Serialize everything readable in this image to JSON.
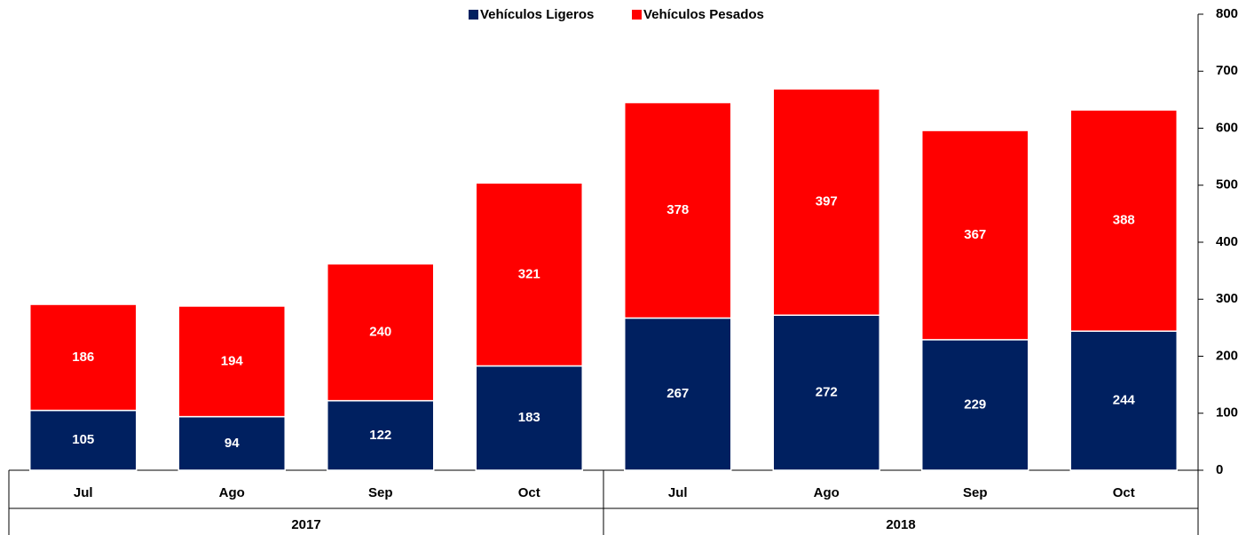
{
  "chart_data": {
    "type": "stacked_bar",
    "categories": [
      "Jul",
      "Ago",
      "Sep",
      "Oct",
      "Jul",
      "Ago",
      "Sep",
      "Oct"
    ],
    "category_groups": [
      "2017",
      "2018"
    ],
    "series": [
      {
        "name": "Vehículos Ligeros",
        "color": "#002060",
        "values": [
          105,
          94,
          122,
          183,
          267,
          272,
          229,
          244
        ]
      },
      {
        "name": "Vehículos Pesados",
        "color": "#ff0000",
        "values": [
          186,
          194,
          240,
          321,
          378,
          397,
          367,
          388
        ]
      }
    ],
    "ylim": [
      0,
      800
    ],
    "yticks": [
      0,
      100,
      200,
      300,
      400,
      500,
      600,
      700,
      800
    ],
    "y_axis_side": "right",
    "legend": "top",
    "grid": false
  }
}
